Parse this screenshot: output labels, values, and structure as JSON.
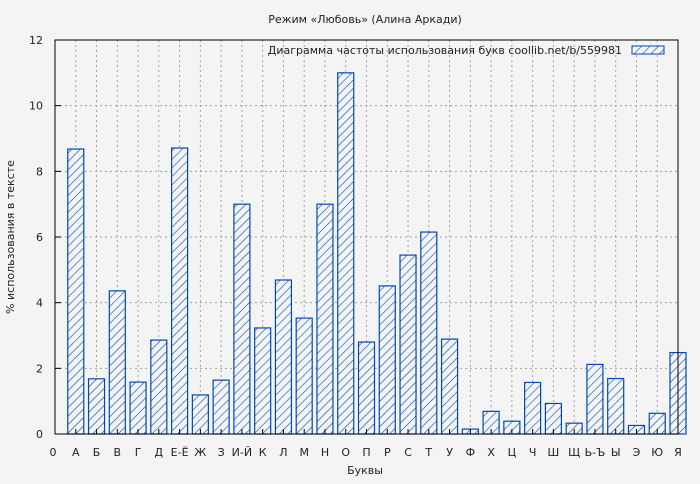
{
  "chart_data": {
    "type": "bar",
    "title": "Режим «Любовь» (Алина Аркади)",
    "xlabel": "Буквы",
    "ylabel": "% использования в тексте",
    "ylim": [
      0,
      12
    ],
    "yticks": [
      0,
      2,
      4,
      6,
      8,
      10,
      12
    ],
    "grid": true,
    "legend_position": "top-right",
    "x_origin_label": "0",
    "categories": [
      "А",
      "Б",
      "В",
      "Г",
      "Д",
      "Е-Ё",
      "Ж",
      "З",
      "И-Й",
      "К",
      "Л",
      "М",
      "Н",
      "О",
      "П",
      "Р",
      "С",
      "Т",
      "У",
      "Ф",
      "Х",
      "Ц",
      "Ч",
      "Ш",
      "Щ",
      "Ь-Ъ",
      "Ы",
      "Э",
      "Ю",
      "Я"
    ],
    "series": [
      {
        "name": "Диаграмма частоты использования букв  coollib.net/b/559981",
        "color": "#0047bb",
        "values": [
          8.68,
          1.68,
          4.36,
          1.58,
          2.86,
          8.71,
          1.19,
          1.64,
          7.0,
          3.23,
          4.69,
          3.53,
          7.0,
          11.0,
          2.8,
          4.51,
          5.45,
          6.15,
          2.89,
          0.15,
          0.69,
          0.39,
          1.57,
          0.93,
          0.33,
          2.12,
          1.69,
          0.26,
          0.63,
          2.48
        ]
      }
    ]
  }
}
